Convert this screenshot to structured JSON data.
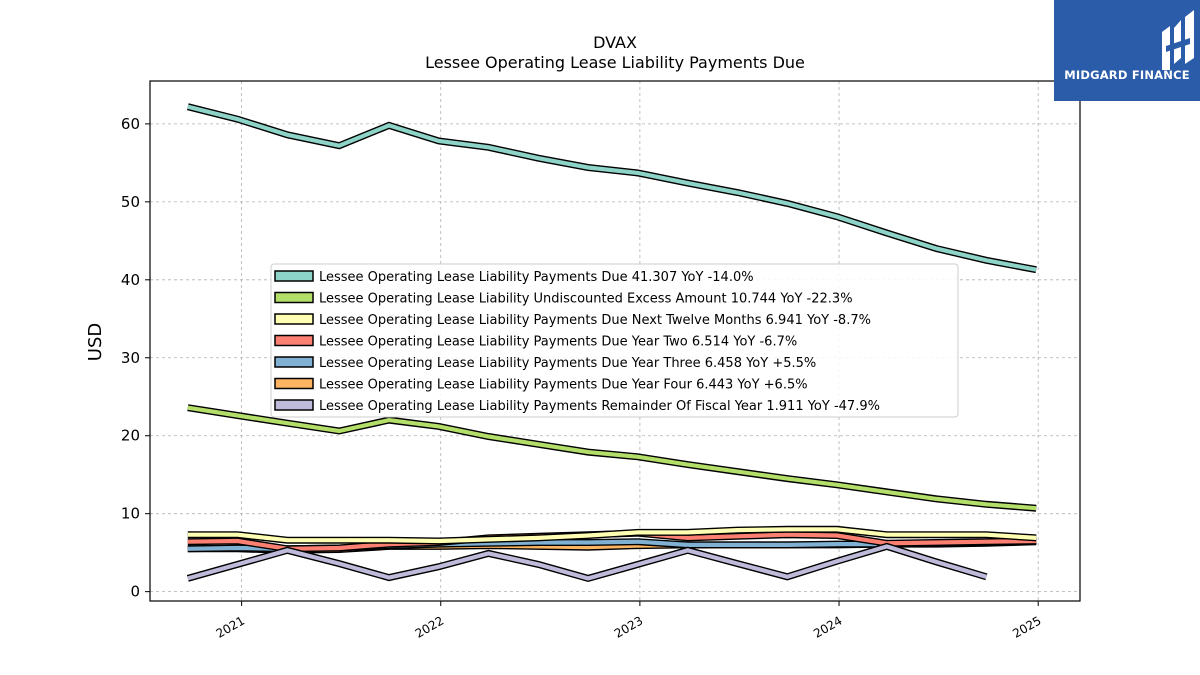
{
  "brand": {
    "name": "MIDGARD FINANCE",
    "color": "#2a5caa"
  },
  "chart_data": {
    "type": "area",
    "title": "DVAX",
    "subtitle": "Lessee Operating Lease Liability Payments Due",
    "ylabel": "USD",
    "xlabel": "",
    "ylim": [
      -1.2,
      65.5
    ],
    "xlim": [
      2020.54,
      2025.21
    ],
    "yticks": [
      0,
      10,
      20,
      30,
      40,
      50,
      60
    ],
    "xticks": [
      2021,
      2022,
      2023,
      2024,
      2025
    ],
    "xtick_labels": [
      "2021",
      "2022",
      "2023",
      "2024",
      "2025"
    ],
    "grid": true,
    "legend_position": "center",
    "series": [
      {
        "name": "Lessee Operating Lease Liability Payments Due",
        "legend": "Lessee Operating Lease Liability Payments Due  41.307 YoY -14.0%",
        "color": "#8dd3c7",
        "x": [
          2020.73,
          2020.98,
          2021.23,
          2021.49,
          2021.74,
          2021.99,
          2022.24,
          2022.49,
          2022.74,
          2022.99,
          2023.24,
          2023.49,
          2023.74,
          2023.99,
          2024.24,
          2024.49,
          2024.74,
          2024.99
        ],
        "values": [
          62.2,
          60.6,
          58.6,
          57.2,
          59.8,
          57.8,
          57.0,
          55.6,
          54.4,
          53.7,
          52.4,
          51.2,
          49.8,
          48.1,
          46.0,
          44.0,
          42.5,
          41.3
        ]
      },
      {
        "name": "Lessee Operating Lease Liability Undiscounted Excess Amount",
        "legend": "Lessee Operating Lease Liability Undiscounted Excess Amount  10.744 YoY -22.3%",
        "color": "#b3de69",
        "x": [
          2020.73,
          2020.98,
          2021.23,
          2021.49,
          2021.74,
          2021.99,
          2022.24,
          2022.49,
          2022.74,
          2022.99,
          2023.24,
          2023.49,
          2023.74,
          2023.99,
          2024.24,
          2024.49,
          2024.74,
          2024.99
        ],
        "values": [
          23.6,
          22.6,
          21.6,
          20.6,
          22.0,
          21.2,
          19.9,
          18.9,
          17.9,
          17.3,
          16.3,
          15.4,
          14.5,
          13.7,
          12.8,
          11.9,
          11.2,
          10.7
        ]
      },
      {
        "name": "Lessee Operating Lease Liability Payments Due Next Twelve Months",
        "legend": "Lessee Operating Lease Liability Payments Due Next Twelve Months  6.941 YoY -8.7%",
        "color": "#ffffb3",
        "x": [
          2020.73,
          2020.98,
          2021.23,
          2021.49,
          2021.74,
          2021.99,
          2022.24,
          2022.49,
          2022.74,
          2022.99,
          2023.24,
          2023.49,
          2023.74,
          2023.99,
          2024.24,
          2024.49,
          2024.74,
          2024.99
        ],
        "values": [
          7.3,
          7.3,
          6.6,
          6.6,
          6.6,
          6.5,
          6.7,
          6.9,
          7.2,
          7.6,
          7.6,
          7.9,
          8.0,
          8.0,
          7.3,
          7.3,
          7.3,
          6.9
        ]
      },
      {
        "name": "Lessee Operating Lease Liability Payments Due Year Two",
        "legend": "Lessee Operating Lease Liability Payments Due Year Two  6.514 YoY -6.7%",
        "color": "#fb8072",
        "x": [
          2020.73,
          2020.98,
          2021.23,
          2021.49,
          2021.74,
          2021.99,
          2022.24,
          2022.49,
          2022.74,
          2022.99,
          2023.24,
          2023.49,
          2023.74,
          2023.99,
          2024.24,
          2024.49,
          2024.74,
          2024.99
        ],
        "values": [
          6.4,
          6.5,
          5.5,
          5.6,
          6.1,
          6.3,
          6.9,
          7.1,
          7.3,
          7.5,
          6.9,
          7.1,
          7.3,
          7.2,
          6.2,
          6.3,
          6.4,
          6.5
        ]
      },
      {
        "name": "Lessee Operating Lease Liability Payments Due Year Three",
        "legend": "Lessee Operating Lease Liability Payments Due Year Three  6.458 YoY +5.5%",
        "color": "#80b1d3",
        "x": [
          2020.73,
          2020.98,
          2021.23,
          2021.49,
          2021.74,
          2021.99,
          2022.24,
          2022.49,
          2022.74,
          2022.99,
          2023.24,
          2023.49,
          2023.74,
          2023.99,
          2024.24,
          2024.49,
          2024.74,
          2024.99
        ],
        "values": [
          5.5,
          5.6,
          5.5,
          5.6,
          5.9,
          6.1,
          6.2,
          6.3,
          6.3,
          6.4,
          6.0,
          6.0,
          6.0,
          6.1,
          6.1,
          6.2,
          6.3,
          6.5
        ]
      },
      {
        "name": "Lessee Operating Lease Liability Payments Due Year Four",
        "legend": "Lessee Operating Lease Liability Payments Due Year Four  6.443 YoY +6.5%",
        "color": "#fdb462",
        "x": [
          2020.73,
          2020.98,
          2021.23,
          2021.49,
          2021.74,
          2021.99,
          2022.24,
          2022.49,
          2022.74,
          2022.99,
          2023.24,
          2023.49,
          2023.74,
          2023.99,
          2024.24,
          2024.49,
          2024.74,
          2024.99
        ],
        "values": [
          5.5,
          5.5,
          5.3,
          5.4,
          5.8,
          5.8,
          5.9,
          5.8,
          5.7,
          5.9,
          6.0,
          6.0,
          6.0,
          6.0,
          6.1,
          6.1,
          6.2,
          6.4
        ]
      },
      {
        "name": "Lessee Operating Lease Liability Payments Remainder Of Fiscal Year",
        "legend": "Lessee Operating Lease Liability Payments Remainder Of Fiscal Year  1.911 YoY -47.9%",
        "color": "#bebada",
        "x": [
          2020.73,
          2020.98,
          2021.23,
          2021.49,
          2021.74,
          2021.99,
          2022.24,
          2022.49,
          2022.74,
          2022.99,
          2023.24,
          2023.49,
          2023.74,
          2023.99,
          2024.24,
          2024.49,
          2024.74
        ],
        "values": [
          1.7,
          3.5,
          5.3,
          3.6,
          1.8,
          3.2,
          4.9,
          3.5,
          1.7,
          3.5,
          5.3,
          3.6,
          1.9,
          3.9,
          5.8,
          3.8,
          1.9
        ]
      }
    ]
  }
}
